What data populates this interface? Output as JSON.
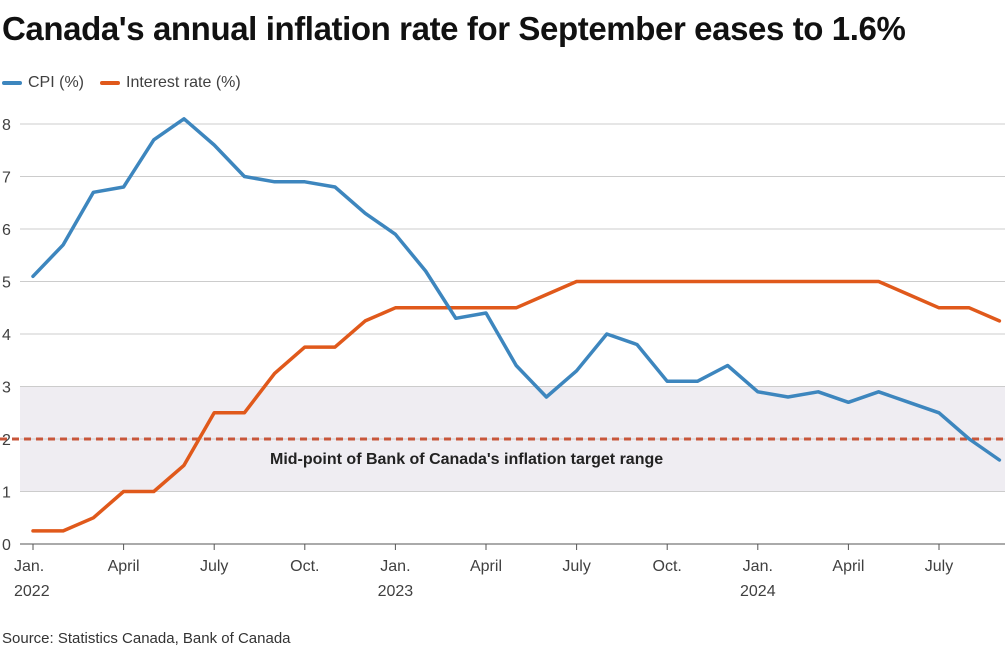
{
  "title": "Canada's annual inflation rate for September eases to 1.6%",
  "source": "Source: Statistics Canada, Bank of Canada",
  "colors": {
    "cpi": "#3d86be",
    "interest": "#e0591b",
    "band": "#efedf2",
    "target": "#c8563a",
    "grid": "#cccccc"
  },
  "chart_data": {
    "type": "line",
    "title": "Canada's annual inflation rate for September eases to 1.6%",
    "ylim": [
      0,
      8
    ],
    "yticks": [
      "0",
      "1",
      "2",
      "3",
      "4",
      "5",
      "6",
      "7",
      "8"
    ],
    "x": [
      "2022-01",
      "2022-02",
      "2022-03",
      "2022-04",
      "2022-05",
      "2022-06",
      "2022-07",
      "2022-08",
      "2022-09",
      "2022-10",
      "2022-11",
      "2022-12",
      "2023-01",
      "2023-02",
      "2023-03",
      "2023-04",
      "2023-05",
      "2023-06",
      "2023-07",
      "2023-08",
      "2023-09",
      "2023-10",
      "2023-11",
      "2023-12",
      "2024-01",
      "2024-02",
      "2024-03",
      "2024-04",
      "2024-05",
      "2024-06",
      "2024-07",
      "2024-08",
      "2024-09"
    ],
    "xticks": [
      {
        "month": 0,
        "label": "Jan.",
        "year": "2022"
      },
      {
        "month": 3,
        "label": "April",
        "year": ""
      },
      {
        "month": 6,
        "label": "July",
        "year": ""
      },
      {
        "month": 9,
        "label": "Oct.",
        "year": ""
      },
      {
        "month": 12,
        "label": "Jan.",
        "year": "2023"
      },
      {
        "month": 15,
        "label": "April",
        "year": ""
      },
      {
        "month": 18,
        "label": "July",
        "year": ""
      },
      {
        "month": 21,
        "label": "Oct.",
        "year": ""
      },
      {
        "month": 24,
        "label": "Jan.",
        "year": "2024"
      },
      {
        "month": 27,
        "label": "April",
        "year": ""
      },
      {
        "month": 30,
        "label": "July",
        "year": ""
      }
    ],
    "series": [
      {
        "name": "CPI (%)",
        "values": [
          5.1,
          5.7,
          6.7,
          6.8,
          7.7,
          8.1,
          7.6,
          7.0,
          6.9,
          6.9,
          6.8,
          6.3,
          5.9,
          5.2,
          4.3,
          4.4,
          3.4,
          2.8,
          3.3,
          4.0,
          3.8,
          3.1,
          3.1,
          3.4,
          2.9,
          2.8,
          2.9,
          2.7,
          2.9,
          2.7,
          2.5,
          2.0,
          1.6
        ]
      },
      {
        "name": "Interest rate (%)",
        "values": [
          0.25,
          0.25,
          0.5,
          1.0,
          1.0,
          1.5,
          2.5,
          2.5,
          3.25,
          3.75,
          3.75,
          4.25,
          4.5,
          4.5,
          4.5,
          4.5,
          4.5,
          4.75,
          5.0,
          5.0,
          5.0,
          5.0,
          5.0,
          5.0,
          5.0,
          5.0,
          5.0,
          5.0,
          5.0,
          4.75,
          4.5,
          4.5,
          4.25
        ]
      }
    ],
    "target_band": [
      1,
      3
    ],
    "target_line": 2,
    "annotation": "Mid-point of Bank of Canada's inflation target range",
    "grid": true,
    "legend_position": "top-left"
  }
}
